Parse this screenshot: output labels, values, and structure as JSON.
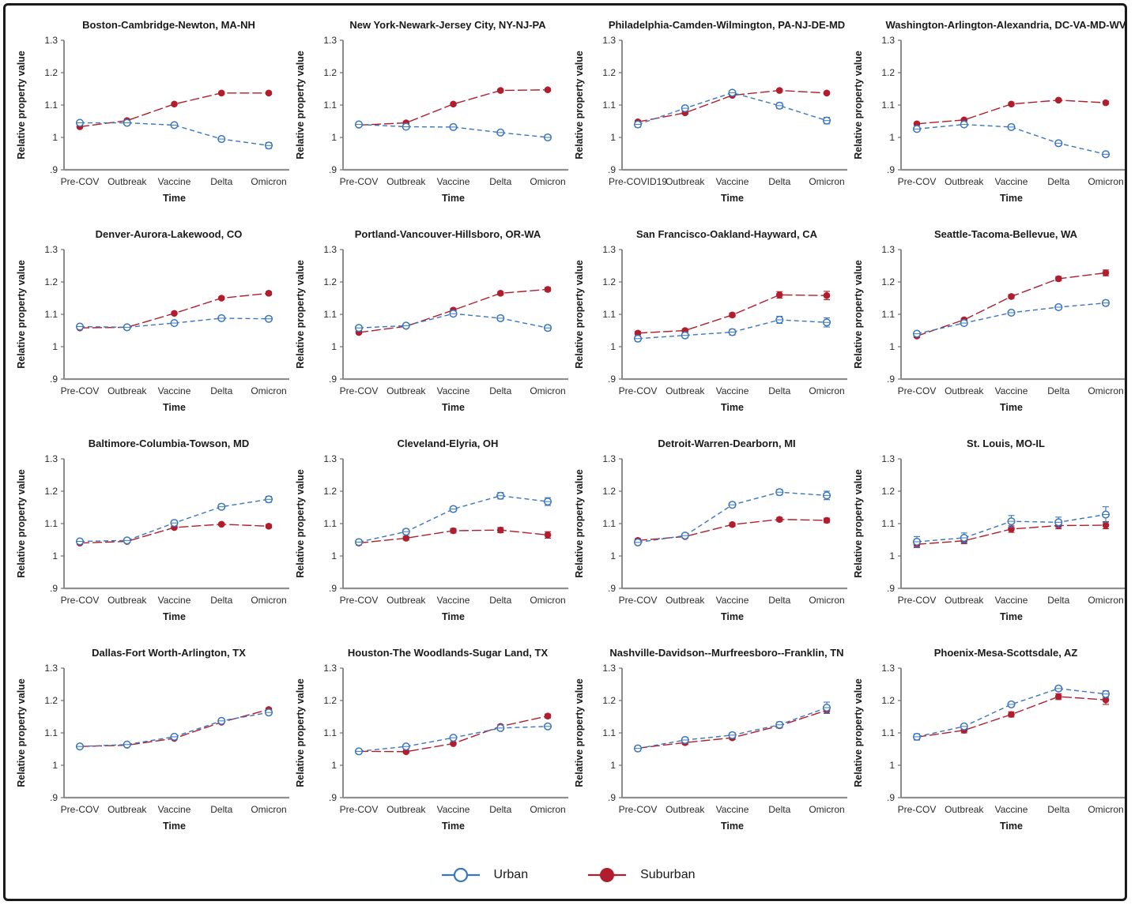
{
  "figure": {
    "background": "#ffffff",
    "border_color": "#1a1a1a"
  },
  "legend": {
    "position": "bottom-center",
    "items": [
      {
        "label": "Urban",
        "series": "urban",
        "marker": "open-circle",
        "color": "#3a76bd"
      },
      {
        "label": "Suburban",
        "series": "suburban",
        "marker": "filled-circle",
        "color": "#b01e2e"
      }
    ]
  },
  "chart_data": {
    "type": "line",
    "layout": "4x4-small-multiples",
    "grid": false,
    "xlabel": "Time",
    "ylabel": "Relative property value",
    "ylim": [
      0.9,
      1.3
    ],
    "yticks": [
      1.3,
      1.2,
      1.1,
      1.0,
      0.9
    ],
    "ytick_labels": [
      "1.3",
      "1.2",
      "1.1",
      "1",
      ".9"
    ],
    "categories_default": [
      "Pre-COV",
      "Outbreak",
      "Vaccine",
      "Delta",
      "Omicron"
    ],
    "series_names": [
      "Urban",
      "Suburban"
    ],
    "colors": {
      "urban": "#3a76bd",
      "suburban": "#b01e2e"
    },
    "error_bars": true,
    "charts": [
      {
        "title": "Boston-Cambridge-Newton, MA-NH",
        "urban": [
          1.045,
          1.045,
          1.038,
          0.995,
          0.975
        ],
        "urban_err": [
          0.006,
          0.006,
          0.006,
          0.006,
          0.009
        ],
        "suburban": [
          1.033,
          1.052,
          1.103,
          1.137,
          1.137
        ],
        "suburban_err": [
          0.004,
          0.004,
          0.004,
          0.004,
          0.004
        ]
      },
      {
        "title": "New York-Newark-Jersey City, NY-NJ-PA",
        "urban": [
          1.04,
          1.033,
          1.032,
          1.015,
          1.0
        ],
        "urban_err": [
          0.005,
          0.005,
          0.005,
          0.005,
          0.005
        ],
        "suburban": [
          1.038,
          1.045,
          1.103,
          1.145,
          1.147
        ],
        "suburban_err": [
          0.004,
          0.004,
          0.004,
          0.004,
          0.004
        ]
      },
      {
        "title": "Philadelphia-Camden-Wilmington, PA-NJ-DE-MD",
        "categories": [
          "Pre-COVID19",
          "Outbreak",
          "Vaccine",
          "Delta",
          "Omicron"
        ],
        "urban": [
          1.04,
          1.09,
          1.138,
          1.098,
          1.052
        ],
        "urban_err": [
          0.008,
          0.007,
          0.007,
          0.009,
          0.01
        ],
        "suburban": [
          1.048,
          1.076,
          1.13,
          1.145,
          1.137
        ],
        "suburban_err": [
          0.004,
          0.004,
          0.004,
          0.004,
          0.004
        ]
      },
      {
        "title": "Washington-Arlington-Alexandria, DC-VA-MD-WV",
        "urban": [
          1.026,
          1.04,
          1.032,
          0.982,
          0.948
        ],
        "urban_err": [
          0.006,
          0.005,
          0.005,
          0.006,
          0.007
        ],
        "suburban": [
          1.042,
          1.054,
          1.103,
          1.115,
          1.107
        ],
        "suburban_err": [
          0.004,
          0.004,
          0.004,
          0.004,
          0.004
        ]
      },
      {
        "title": "Denver-Aurora-Lakewood, CO",
        "urban": [
          1.062,
          1.06,
          1.073,
          1.088,
          1.086
        ],
        "urban_err": [
          0.005,
          0.005,
          0.006,
          0.006,
          0.007
        ],
        "suburban": [
          1.058,
          1.06,
          1.103,
          1.15,
          1.165
        ],
        "suburban_err": [
          0.004,
          0.004,
          0.004,
          0.004,
          0.005
        ]
      },
      {
        "title": "Portland-Vancouver-Hillsboro, OR-WA",
        "urban": [
          1.058,
          1.065,
          1.102,
          1.088,
          1.058
        ],
        "urban_err": [
          0.006,
          0.005,
          0.007,
          0.007,
          0.008
        ],
        "suburban": [
          1.044,
          1.063,
          1.113,
          1.165,
          1.177
        ],
        "suburban_err": [
          0.004,
          0.004,
          0.005,
          0.005,
          0.006
        ]
      },
      {
        "title": "San Francisco-Oakland-Hayward, CA",
        "urban": [
          1.025,
          1.035,
          1.045,
          1.083,
          1.075
        ],
        "urban_err": [
          0.008,
          0.008,
          0.009,
          0.011,
          0.014
        ],
        "suburban": [
          1.042,
          1.05,
          1.098,
          1.16,
          1.158
        ],
        "suburban_err": [
          0.005,
          0.005,
          0.006,
          0.01,
          0.013
        ]
      },
      {
        "title": "Seattle-Tacoma-Bellevue, WA",
        "urban": [
          1.04,
          1.073,
          1.105,
          1.122,
          1.135
        ],
        "urban_err": [
          0.005,
          0.006,
          0.006,
          0.007,
          0.008
        ],
        "suburban": [
          1.033,
          1.083,
          1.155,
          1.21,
          1.228
        ],
        "suburban_err": [
          0.005,
          0.005,
          0.006,
          0.007,
          0.009
        ]
      },
      {
        "title": "Baltimore-Columbia-Towson, MD",
        "urban": [
          1.045,
          1.048,
          1.102,
          1.152,
          1.175
        ],
        "urban_err": [
          0.006,
          0.006,
          0.008,
          0.008,
          0.009
        ],
        "suburban": [
          1.04,
          1.045,
          1.088,
          1.098,
          1.092
        ],
        "suburban_err": [
          0.004,
          0.004,
          0.004,
          0.004,
          0.005
        ]
      },
      {
        "title": "Cleveland-Elyria, OH",
        "urban": [
          1.043,
          1.075,
          1.145,
          1.186,
          1.168
        ],
        "urban_err": [
          0.007,
          0.008,
          0.008,
          0.01,
          0.012
        ],
        "suburban": [
          1.04,
          1.055,
          1.078,
          1.08,
          1.065
        ],
        "suburban_err": [
          0.006,
          0.006,
          0.007,
          0.008,
          0.01
        ]
      },
      {
        "title": "Detroit-Warren-Dearborn, MI",
        "urban": [
          1.042,
          1.063,
          1.158,
          1.197,
          1.187
        ],
        "urban_err": [
          0.007,
          0.007,
          0.008,
          0.009,
          0.013
        ],
        "suburban": [
          1.048,
          1.06,
          1.097,
          1.113,
          1.11
        ],
        "suburban_err": [
          0.005,
          0.005,
          0.005,
          0.006,
          0.007
        ]
      },
      {
        "title": "St. Louis, MO-IL",
        "urban": [
          1.044,
          1.056,
          1.107,
          1.104,
          1.128
        ],
        "urban_err": [
          0.016,
          0.015,
          0.018,
          0.016,
          0.024
        ],
        "suburban": [
          1.036,
          1.047,
          1.083,
          1.094,
          1.095
        ],
        "suburban_err": [
          0.01,
          0.009,
          0.01,
          0.01,
          0.011
        ]
      },
      {
        "title": "Dallas-Fort Worth-Arlington, TX",
        "urban": [
          1.058,
          1.064,
          1.088,
          1.137,
          1.163
        ],
        "urban_err": [
          0.004,
          0.004,
          0.005,
          0.005,
          0.006
        ],
        "suburban": [
          1.058,
          1.062,
          1.083,
          1.133,
          1.172
        ],
        "suburban_err": [
          0.004,
          0.004,
          0.004,
          0.004,
          0.005
        ]
      },
      {
        "title": "Houston-The Woodlands-Sugar Land, TX",
        "urban": [
          1.043,
          1.058,
          1.085,
          1.115,
          1.12
        ],
        "urban_err": [
          0.005,
          0.005,
          0.005,
          0.006,
          0.006
        ],
        "suburban": [
          1.043,
          1.042,
          1.067,
          1.12,
          1.152
        ],
        "suburban_err": [
          0.004,
          0.004,
          0.004,
          0.005,
          0.006
        ]
      },
      {
        "title": "Nashville-Davidson--Murfreesboro--Franklin, TN",
        "urban": [
          1.052,
          1.078,
          1.093,
          1.125,
          1.178
        ],
        "urban_err": [
          0.008,
          0.008,
          0.008,
          0.009,
          0.017
        ],
        "suburban": [
          1.053,
          1.07,
          1.085,
          1.122,
          1.17
        ],
        "suburban_err": [
          0.006,
          0.006,
          0.006,
          0.007,
          0.01
        ]
      },
      {
        "title": "Phoenix-Mesa-Scottsdale, AZ",
        "urban": [
          1.088,
          1.12,
          1.188,
          1.237,
          1.22
        ],
        "urban_err": [
          0.009,
          0.007,
          0.007,
          0.007,
          0.01
        ],
        "suburban": [
          1.087,
          1.108,
          1.157,
          1.212,
          1.202
        ],
        "suburban_err": [
          0.009,
          0.008,
          0.008,
          0.009,
          0.014
        ]
      }
    ]
  }
}
